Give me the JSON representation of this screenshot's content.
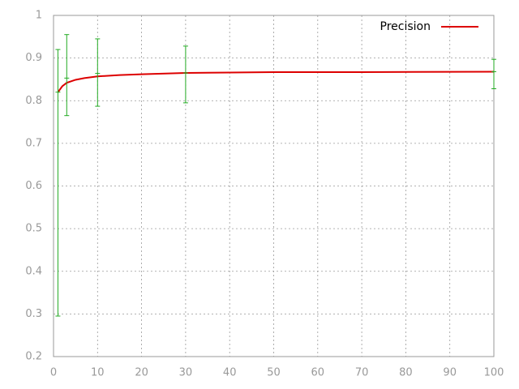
{
  "chart_data": {
    "type": "line",
    "series": [
      {
        "name": "Precision",
        "color": "#dd0000",
        "x": [
          1,
          2,
          3,
          5,
          7,
          10,
          15,
          20,
          30,
          40,
          50,
          70,
          100
        ],
        "values": [
          0.82,
          0.834,
          0.842,
          0.849,
          0.853,
          0.857,
          0.86,
          0.862,
          0.865,
          0.866,
          0.867,
          0.867,
          0.868
        ]
      }
    ],
    "errorbars": {
      "color": "#22aa22",
      "x": [
        1,
        3,
        10,
        30,
        100
      ],
      "values": [
        0.82,
        0.853,
        0.864,
        0.865,
        0.868
      ],
      "low": [
        0.295,
        0.765,
        0.787,
        0.795,
        0.828
      ],
      "high": [
        0.92,
        0.955,
        0.945,
        0.928,
        0.897
      ]
    },
    "xlim": [
      0,
      100
    ],
    "ylim": [
      0.2,
      1
    ],
    "xticks": [
      0,
      10,
      20,
      30,
      40,
      50,
      60,
      70,
      80,
      90,
      100
    ],
    "yticks": [
      0.2,
      0.3,
      0.4,
      0.5,
      0.6,
      0.7,
      0.8,
      0.9,
      1
    ],
    "grid": true,
    "legend": "top-right"
  }
}
